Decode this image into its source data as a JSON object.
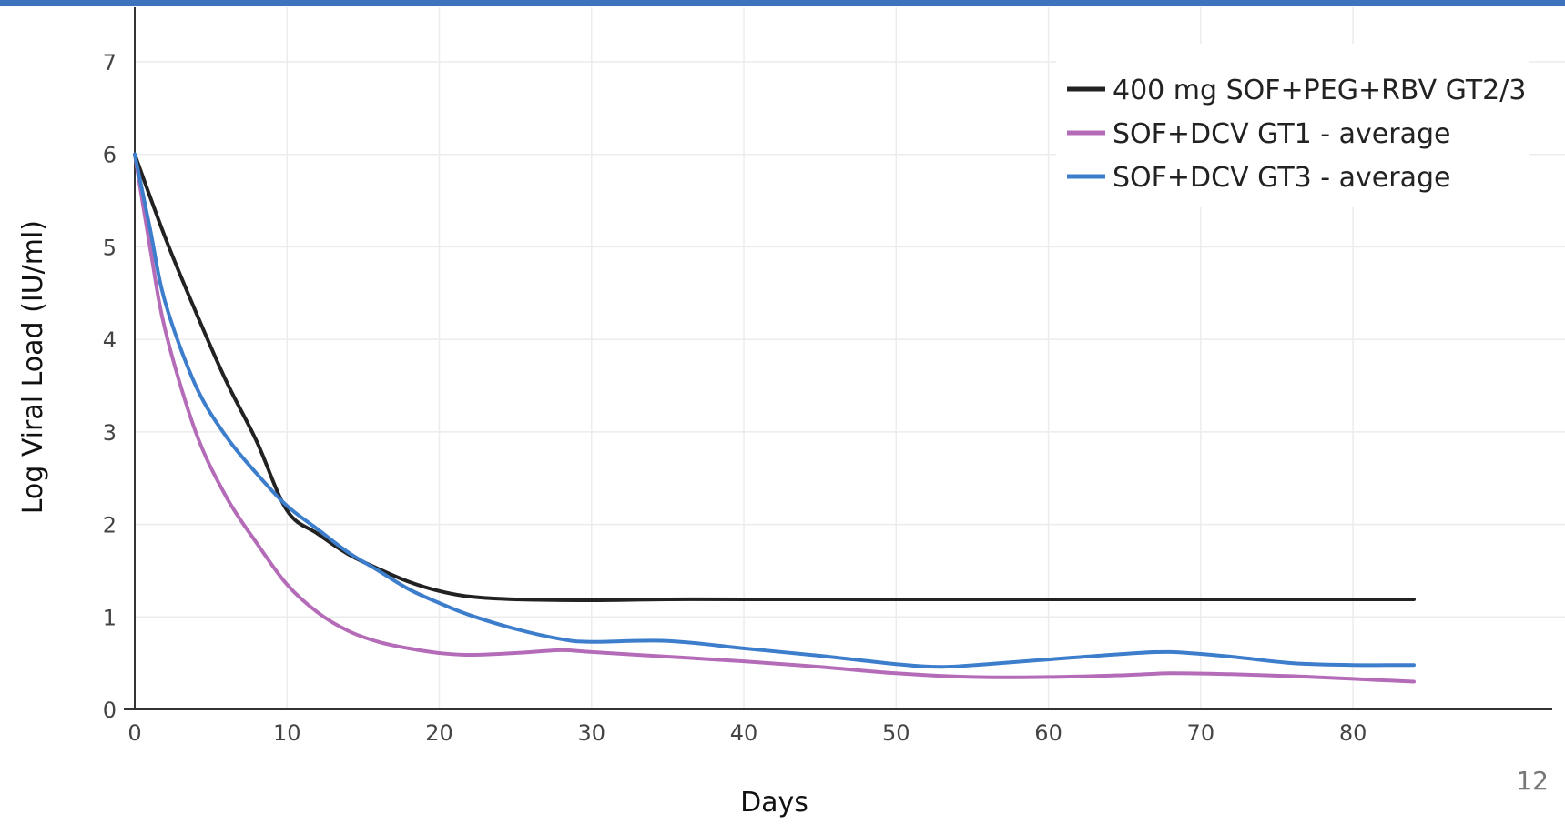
{
  "page": {
    "number": "12",
    "top_bar_color": "#3c72be"
  },
  "chart_data": {
    "type": "line",
    "xlabel": "Days",
    "ylabel": "Log Viral Load (IU/ml)",
    "xlim": [
      0,
      84
    ],
    "ylim": [
      0,
      7.5
    ],
    "x_ticks": [
      0,
      10,
      20,
      30,
      40,
      50,
      60,
      70,
      80
    ],
    "y_ticks": [
      0,
      1,
      2,
      3,
      4,
      5,
      6,
      7
    ],
    "grid": true,
    "legend_position": "top-right",
    "series": [
      {
        "name": "400 mg SOF+PEG+RBV GT2/3",
        "color": "#222222",
        "points": [
          [
            0,
            6.0
          ],
          [
            2,
            5.1
          ],
          [
            4,
            4.3
          ],
          [
            6,
            3.55
          ],
          [
            8,
            2.9
          ],
          [
            10,
            2.15
          ],
          [
            12,
            1.9
          ],
          [
            14,
            1.68
          ],
          [
            16,
            1.52
          ],
          [
            18,
            1.38
          ],
          [
            20,
            1.28
          ],
          [
            22,
            1.22
          ],
          [
            25,
            1.19
          ],
          [
            30,
            1.18
          ],
          [
            35,
            1.19
          ],
          [
            40,
            1.19
          ],
          [
            50,
            1.19
          ],
          [
            60,
            1.19
          ],
          [
            70,
            1.19
          ],
          [
            80,
            1.19
          ],
          [
            84,
            1.19
          ]
        ]
      },
      {
        "name": "SOF+DCV GT1 - average",
        "color": "#b56cb8",
        "points": [
          [
            0,
            6.0
          ],
          [
            1,
            5.0
          ],
          [
            2,
            4.1
          ],
          [
            4,
            3.0
          ],
          [
            6,
            2.3
          ],
          [
            8,
            1.8
          ],
          [
            10,
            1.35
          ],
          [
            12,
            1.05
          ],
          [
            14,
            0.85
          ],
          [
            16,
            0.73
          ],
          [
            18,
            0.66
          ],
          [
            20,
            0.61
          ],
          [
            22,
            0.59
          ],
          [
            25,
            0.61
          ],
          [
            28,
            0.64
          ],
          [
            30,
            0.62
          ],
          [
            35,
            0.57
          ],
          [
            40,
            0.52
          ],
          [
            45,
            0.46
          ],
          [
            50,
            0.39
          ],
          [
            55,
            0.35
          ],
          [
            60,
            0.35
          ],
          [
            65,
            0.37
          ],
          [
            68,
            0.39
          ],
          [
            72,
            0.38
          ],
          [
            76,
            0.36
          ],
          [
            80,
            0.33
          ],
          [
            84,
            0.3
          ]
        ]
      },
      {
        "name": "SOF+DCV GT3 - average",
        "color": "#3c7dcc",
        "points": [
          [
            0,
            6.0
          ],
          [
            1,
            5.2
          ],
          [
            2,
            4.4
          ],
          [
            4,
            3.5
          ],
          [
            6,
            2.95
          ],
          [
            8,
            2.55
          ],
          [
            10,
            2.2
          ],
          [
            12,
            1.95
          ],
          [
            14,
            1.7
          ],
          [
            16,
            1.5
          ],
          [
            18,
            1.3
          ],
          [
            20,
            1.15
          ],
          [
            22,
            1.02
          ],
          [
            25,
            0.87
          ],
          [
            28,
            0.76
          ],
          [
            30,
            0.73
          ],
          [
            35,
            0.74
          ],
          [
            40,
            0.66
          ],
          [
            45,
            0.58
          ],
          [
            50,
            0.49
          ],
          [
            53,
            0.46
          ],
          [
            56,
            0.49
          ],
          [
            60,
            0.54
          ],
          [
            65,
            0.6
          ],
          [
            68,
            0.62
          ],
          [
            72,
            0.57
          ],
          [
            76,
            0.5
          ],
          [
            80,
            0.48
          ],
          [
            84,
            0.48
          ]
        ]
      }
    ]
  }
}
